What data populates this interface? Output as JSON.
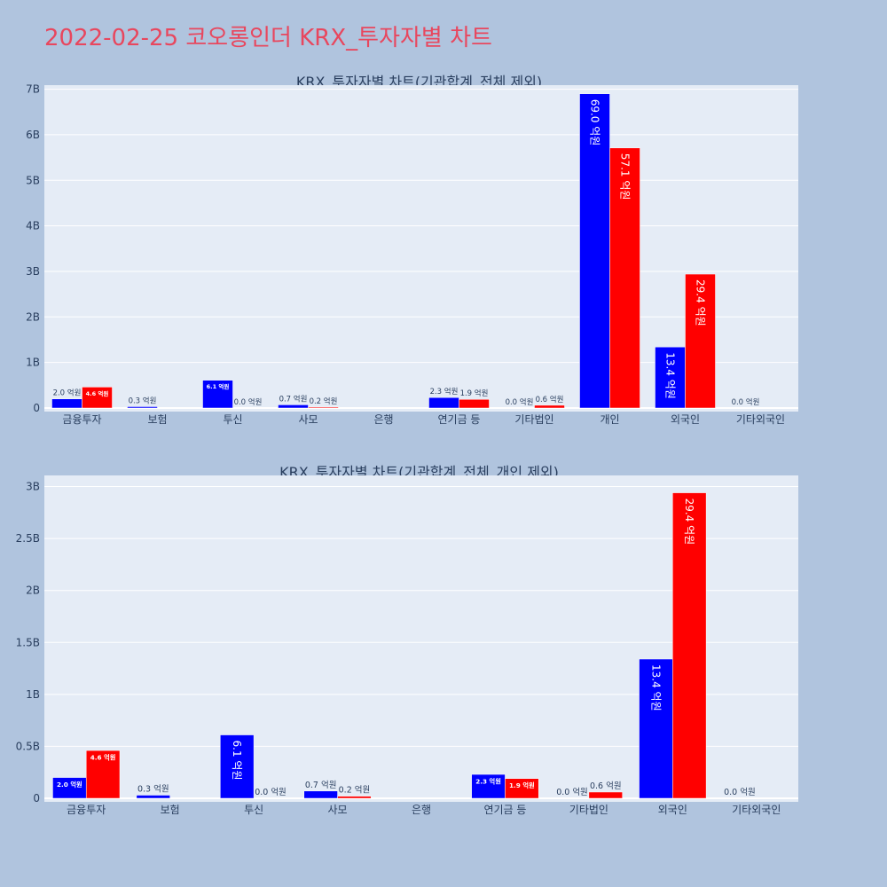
{
  "page": {
    "title": "2022-02-25 코오롱인더 KRX_투자자별 차트",
    "title_color": "#e8475e",
    "background": "#b0c4de"
  },
  "chart_data": [
    {
      "type": "bar",
      "title": "KRX_투자자별 차트(기관합계_전체 제외)",
      "categories": [
        "금융투자",
        "보험",
        "투신",
        "사모",
        "은행",
        "연기금 등",
        "기타법인",
        "개인",
        "외국인",
        "기타외국인"
      ],
      "series": [
        {
          "color": "#0000ff",
          "values": [
            0.2,
            0.03,
            0.61,
            0.07,
            0,
            0.23,
            0.0,
            6.9,
            1.34,
            0.0
          ],
          "labels": [
            "2.0 억원",
            "0.3 억원",
            "6.1 억원",
            "0.7 억원",
            "",
            "2.3 억원",
            "0.0 억원",
            "69.0 억원",
            "13.4 억원",
            "0.0 억원"
          ]
        },
        {
          "color": "#ff0000",
          "values": [
            0.46,
            0,
            0.0,
            0.02,
            0,
            0.19,
            0.06,
            5.71,
            2.94,
            0
          ],
          "labels": [
            "4.6 억원",
            "",
            "0.0 억원",
            "0.2 억원",
            "",
            "1.9 억원",
            "0.6 억원",
            "57.1 억원",
            "29.4 억원",
            ""
          ]
        }
      ],
      "yticks": [
        0,
        1,
        2,
        3,
        4,
        5,
        6,
        7
      ],
      "ytick_labels": [
        "0",
        "1B",
        "2B",
        "3B",
        "4B",
        "5B",
        "6B",
        "7B"
      ],
      "ylim": [
        0,
        7.05
      ],
      "yunit": "B",
      "grid": true,
      "plot_bg": "#e5ecf6"
    },
    {
      "type": "bar",
      "title": "KRX_투자자별 차트(기관합계_전체_개인 제외)",
      "categories": [
        "금융투자",
        "보험",
        "투신",
        "사모",
        "은행",
        "연기금 등",
        "기타법인",
        "외국인",
        "기타외국인"
      ],
      "series": [
        {
          "color": "#0000ff",
          "values": [
            0.2,
            0.03,
            0.61,
            0.07,
            0,
            0.23,
            0.0,
            1.34,
            0.0
          ],
          "labels": [
            "2.0 억원",
            "0.3 억원",
            "6.1 억원",
            "0.7 억원",
            "",
            "2.3 억원",
            "0.0 억원",
            "13.4 억원",
            "0.0 억원"
          ]
        },
        {
          "color": "#ff0000",
          "values": [
            0.46,
            0,
            0.0,
            0.02,
            0,
            0.19,
            0.06,
            2.94,
            0
          ],
          "labels": [
            "4.6 억원",
            "",
            "0.0 억원",
            "0.2 억원",
            "",
            "1.9 억원",
            "0.6 억원",
            "29.4 억원",
            ""
          ]
        }
      ],
      "yticks": [
        0,
        0.5,
        1,
        1.5,
        2,
        2.5,
        3
      ],
      "ytick_labels": [
        "0",
        "0.5B",
        "1B",
        "1.5B",
        "2B",
        "2.5B",
        "3B"
      ],
      "ylim": [
        0,
        3.09
      ],
      "yunit": "B",
      "grid": true,
      "plot_bg": "#e5ecf6"
    }
  ]
}
